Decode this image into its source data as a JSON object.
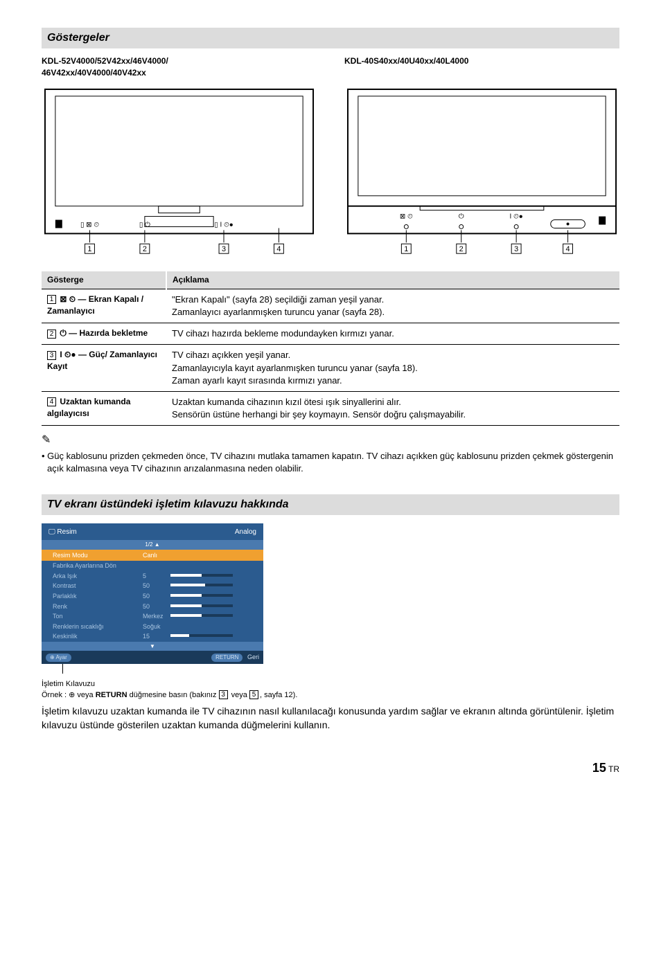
{
  "section1_title": "Göstergeler",
  "models_left": "KDL-52V4000/52V42xx/46V4000/\n46V42xx/40V4000/40V42xx",
  "models_right": "KDL-40S40xx/40U40xx/40L4000",
  "table": {
    "header_col1": "Gösterge",
    "header_col2": "Açıklama",
    "rows": [
      {
        "num": "1",
        "icon_label": "⊠ ⏲ — Ekran Kapalı / Zamanlayıcı",
        "desc": "\"Ekran Kapalı\" (sayfa 28) seçildiği zaman yeşil yanar.\nZamanlayıcı ayarlanmışken turuncu yanar (sayfa 28)."
      },
      {
        "num": "2",
        "icon_label": "⏻ — Hazırda bekletme",
        "desc": "TV cihazı hazırda bekleme modundayken kırmızı yanar."
      },
      {
        "num": "3",
        "icon_label": "I ⏲● — Güç/ Zamanlayıcı Kayıt",
        "desc": "TV cihazı açıkken yeşil yanar.\nZamanlayıcıyla kayıt ayarlanmışken turuncu yanar (sayfa 18).\nZaman ayarlı kayıt sırasında kırmızı yanar."
      },
      {
        "num": "4",
        "icon_label": "Uzaktan kumanda algılayıcısı",
        "desc": "Uzaktan kumanda cihazının kızıl ötesi ışık sinyallerini alır.\nSensörün üstüne herhangi bir şey koymayın. Sensör doğru çalışmayabilir."
      }
    ]
  },
  "note_text": "• Güç kablosunu prizden çekmeden önce, TV cihazını mutlaka tamamen kapatın. TV cihazı açıkken güç kablosunu prizden çekmek göstergenin açık kalmasına veya TV cihazının arızalanmasına neden olabilir.",
  "section2_title": "TV ekranı üstündeki işletim kılavuzu hakkında",
  "osd": {
    "title_left": "Resim",
    "title_right": "Analog",
    "pager": "1/2 ▲",
    "selected_label": "Resim Modu",
    "selected_val": "Canlı",
    "items": [
      {
        "label": "Fabrika Ayarlarına Dön",
        "val": "",
        "pct": null
      },
      {
        "label": "Arka Işık",
        "val": "5",
        "pct": 50
      },
      {
        "label": "Kontrast",
        "val": "50",
        "pct": 55
      },
      {
        "label": "Parlaklık",
        "val": "50",
        "pct": 50
      },
      {
        "label": "Renk",
        "val": "50",
        "pct": 50
      },
      {
        "label": "Ton",
        "val": "Merkez",
        "pct": 50
      },
      {
        "label": "Renklerin sıcaklığı",
        "val": "Soğuk",
        "pct": null
      },
      {
        "label": "Keskinlik",
        "val": "15",
        "pct": 30
      }
    ],
    "footer_left": "Ayar",
    "footer_right1": "RETURN",
    "footer_right2": "Geri"
  },
  "caption_title": "İşletim Kılavuzu",
  "caption_example_pre": "Örnek : ⊕ veya ",
  "caption_example_bold": "RETURN",
  "caption_example_post1": " düğmesine basın (bakınız ",
  "caption_example_ref1": "3",
  "caption_example_mid": " veya ",
  "caption_example_ref2": "5",
  "caption_example_end": ", sayfa 12).",
  "body_text": "İşletim kılavuzu uzaktan kumanda ile TV cihazının nasıl kullanılacağı konusunda yardım sağlar ve ekranın altında görüntülenir. İşletim kılavuzu üstünde gösterilen uzaktan kumanda düğmelerini kullanın.",
  "page_number": "15",
  "page_suffix": " TR"
}
